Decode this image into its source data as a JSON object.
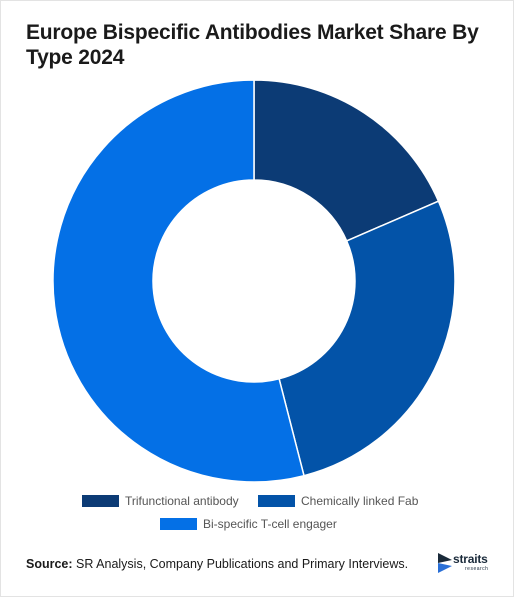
{
  "title": "Europe Bispecific Antibodies Market Share By Type 2024",
  "chart_data": {
    "type": "pie",
    "categories": [
      "Trifunctional antibody",
      "Chemically linked Fab",
      "Bi-specific T-cell engager"
    ],
    "values": [
      18.5,
      27.5,
      54.0
    ],
    "colors": [
      "#0c3b75",
      "#0353a8",
      "#0470e6"
    ],
    "donut": true,
    "legend_position": "bottom"
  },
  "source": {
    "label": "Source:",
    "text": " SR Analysis, Company Publications and Primary Interviews."
  },
  "logo": {
    "name": "straits",
    "sub": "research",
    "icon": "straits-arrow-logo"
  }
}
